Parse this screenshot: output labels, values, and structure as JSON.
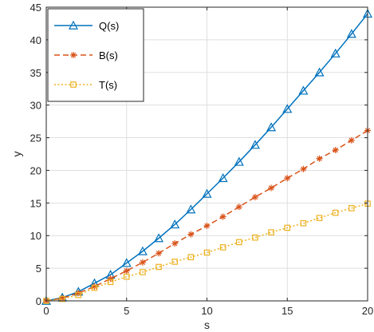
{
  "chart_data": {
    "type": "line",
    "xlabel": "s",
    "ylabel": "y",
    "xlim": [
      0,
      20
    ],
    "ylim": [
      0,
      45
    ],
    "xticks": [
      0,
      5,
      10,
      15,
      20
    ],
    "yticks": [
      0,
      5,
      10,
      15,
      20,
      25,
      30,
      35,
      40,
      45
    ],
    "grid": true,
    "legend_position": "top-left",
    "x": [
      0,
      1,
      2,
      3,
      4,
      5,
      6,
      7,
      8,
      9,
      10,
      11,
      12,
      13,
      14,
      15,
      16,
      17,
      18,
      19,
      20
    ],
    "series": [
      {
        "name": "Q(s)",
        "color": "#0072BD",
        "line": "solid",
        "marker": "triangle",
        "values": [
          0,
          0.5,
          1.4,
          2.7,
          4.0,
          5.8,
          7.6,
          9.6,
          11.7,
          14.0,
          16.4,
          18.8,
          21.3,
          23.9,
          26.6,
          29.4,
          32.2,
          35.0,
          37.9,
          40.9,
          44.0
        ]
      },
      {
        "name": "B(s)",
        "color": "#D95319",
        "line": "dashed",
        "marker": "asterisk",
        "values": [
          0,
          0.4,
          1.2,
          2.2,
          3.4,
          4.6,
          5.9,
          7.3,
          8.8,
          10.2,
          11.5,
          12.9,
          14.4,
          15.9,
          17.3,
          18.8,
          20.2,
          21.8,
          23.1,
          24.6,
          26.1
        ]
      },
      {
        "name": "T(s)",
        "color": "#EDB120",
        "line": "dotted",
        "marker": "square",
        "values": [
          0,
          0.3,
          0.9,
          2.0,
          2.9,
          3.7,
          4.4,
          5.2,
          6.0,
          6.7,
          7.4,
          8.2,
          9.0,
          9.7,
          10.5,
          11.2,
          11.9,
          12.7,
          13.5,
          14.2,
          14.9
        ]
      }
    ]
  }
}
